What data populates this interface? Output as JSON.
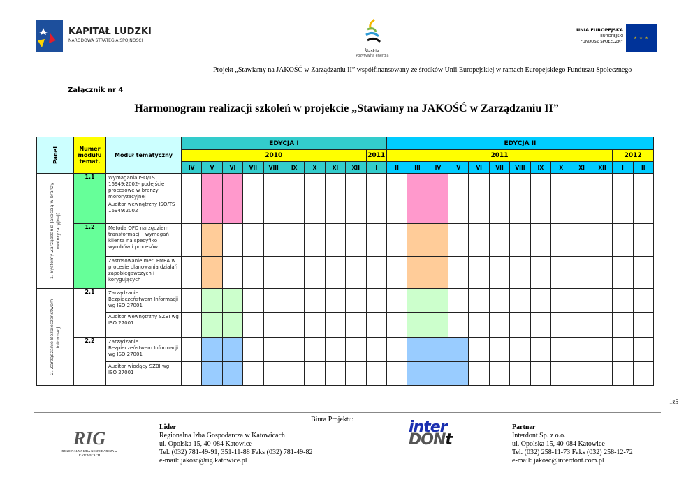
{
  "header": {
    "kapital_title": "KAPITAŁ LUDZKI",
    "kapital_sub": "NARODOWA STRATEGIA SPÓJNOŚCI",
    "slaskie_title": "Śląskie.",
    "slaskie_sub": "Pozytywna energia",
    "ue_title": "UNIA EUROPEJSKA",
    "ue_line2": "EUROPEJSKI",
    "ue_line3": "FUNDUSZ SPOŁECZNY",
    "project_line": "Projekt  „Stawiamy na JAKOŚĆ w Zarządzaniu II” współfinansowany ze środków Unii Europejskiej w ramach Europejskiego Funduszu Społecznego",
    "annex": "Załącznik nr 4",
    "title": "Harmonogram realizacji szkoleń w projekcie „Stawiamy na JAKOŚĆ w Zarządzaniu II”"
  },
  "table": {
    "panel_header": "Panel",
    "number_header": "Numer modułu temat.",
    "module_header": "Moduł tematyczny",
    "editions": [
      {
        "label": "EDYCJA I",
        "span": 10
      },
      {
        "label": "EDYCJA II",
        "span": 13
      }
    ],
    "years": [
      {
        "label": "2010",
        "span": 9,
        "edition": 0
      },
      {
        "label": "2011",
        "span": 1,
        "edition": 0
      },
      {
        "label": "2011",
        "span": 11,
        "edition": 1
      },
      {
        "label": "2012",
        "span": 2,
        "edition": 1
      }
    ],
    "months": [
      "IV",
      "V",
      "VI",
      "VII",
      "VIII",
      "IX",
      "X",
      "XI",
      "XII",
      "I",
      "II",
      "III",
      "IV",
      "V",
      "VI",
      "VII",
      "VIII",
      "IX",
      "X",
      "XI",
      "XII",
      "I",
      "II"
    ],
    "panels": [
      {
        "label": "1. Systemy Zarządzania Jakością w branży motoryzacyjnej)",
        "rows": 3
      },
      {
        "label": "2. Zarządzanie Bezpieczeństwem Informacji",
        "rows": 4
      }
    ],
    "modules": [
      {
        "number": "1.1",
        "number_color": "#66ff99",
        "subrows": [
          {
            "text": [
              "Wymagania ISO/TS 16949:2002- podejście procesowe w branży mororyzacyjnej",
              "Auditor wewnętrzny ISO/TS 16949:2002"
            ],
            "color": "#ff99cc",
            "months": [
              1,
              2,
              11,
              12
            ]
          }
        ]
      },
      {
        "number": "1.2",
        "number_color": "#66ff99",
        "subrows": [
          {
            "text": [
              "Metoda QFD narzędziem transformacji i wymagań klienta na specyfikę wyrobów i procesów"
            ],
            "color": "#ffcc99",
            "months": [
              1,
              11,
              12
            ]
          },
          {
            "text": [
              "Zastosowanie met. FMEA w procesie planowania działań zapobiegawczych i korygujących"
            ],
            "color": "#ffcc99",
            "months": [
              1,
              11,
              12
            ]
          }
        ]
      },
      {
        "number": "2.1",
        "number_color": "#ffffff",
        "subrows": [
          {
            "text": [
              "Zarządzanie Bezpieczeństwem Informacji wg ISO 27001"
            ],
            "color": "#ccffcc",
            "months": [
              1,
              2,
              11,
              12
            ]
          },
          {
            "text": [
              "Auditor wewnętrzny SZBI wg ISO 27001"
            ],
            "color": "#ccffcc",
            "months": [
              1,
              2,
              11,
              12
            ]
          }
        ]
      },
      {
        "number": "2.2",
        "number_color": "#ffffff",
        "subrows": [
          {
            "text": [
              "Zarządzanie Bezpieczeństwem Informacji wg ISO 27001"
            ],
            "color": "#99ccff",
            "months": [
              1,
              2,
              11,
              12,
              13
            ]
          },
          {
            "text": [
              "Auditor wiodący SZBI wg ISO 27001"
            ],
            "color": "#99ccff",
            "months": [
              1,
              2,
              11,
              12,
              13
            ]
          }
        ]
      }
    ]
  },
  "footer": {
    "page": "1z5",
    "offices": "Biura Projektu:",
    "rig_logo_text": "REGIONALNA IZBA GOSPODARCZA w KATOWICACH",
    "lider": {
      "role": "Lider",
      "name": "Regionalna Izba Gospodarcza w Katowicach",
      "address": "ul. Opolska 15, 40-084 Katowice",
      "phone": "Tel. (032) 781-49-91, 351-11-88 Faks (032) 781-49-82",
      "email": "e-mail: jakosc@rig.katowice.pl"
    },
    "interdont_logo": "inter DON t",
    "partner": {
      "role": "Partner",
      "name": "Interdont Sp. z o.o.",
      "address": "ul. Opolska 15, 40-084 Katowice",
      "phone": "Tel. (032) 258-11-73 Faks (032) 258-12-72",
      "email": "e-mail: jakosc@interdont.com.pl"
    }
  }
}
